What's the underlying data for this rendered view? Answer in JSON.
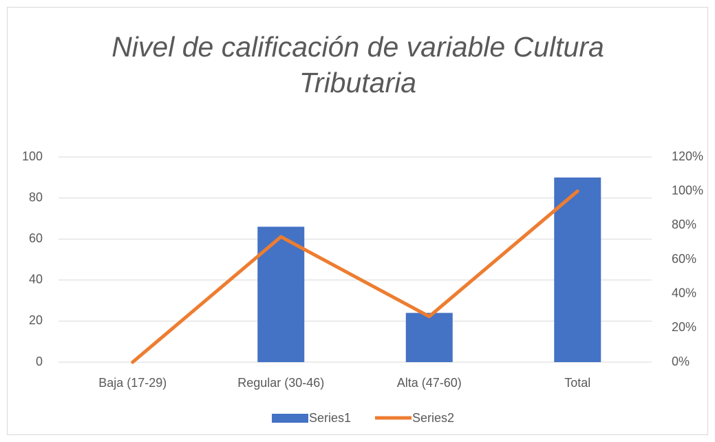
{
  "chart_data": {
    "type": "bar",
    "title": "Nivel de calificación de variable Cultura Tributaria",
    "categories": [
      "Baja (17-29)",
      "Regular (30-46)",
      "Alta (47-60)",
      "Total"
    ],
    "series": [
      {
        "name": "Series1",
        "type": "bar",
        "color": "#4472c4",
        "values": [
          0,
          66,
          24,
          90
        ]
      },
      {
        "name": "Series2",
        "type": "line",
        "axis": "y2",
        "color": "#ed7d31",
        "values": [
          0,
          73.3,
          26.7,
          100
        ]
      }
    ],
    "ylim": [
      0,
      100
    ],
    "yticks": [
      0,
      20,
      40,
      60,
      80,
      100
    ],
    "y2lim": [
      0,
      120
    ],
    "y2ticks": [
      {
        "value": 0,
        "label": "0%"
      },
      {
        "value": 20,
        "label": "20%"
      },
      {
        "value": 40,
        "label": "40%"
      },
      {
        "value": 60,
        "label": "60%"
      },
      {
        "value": 80,
        "label": "80%"
      },
      {
        "value": 100,
        "label": "100%"
      },
      {
        "value": 120,
        "label": "120%"
      }
    ],
    "grid": true,
    "legend": "bottom"
  }
}
